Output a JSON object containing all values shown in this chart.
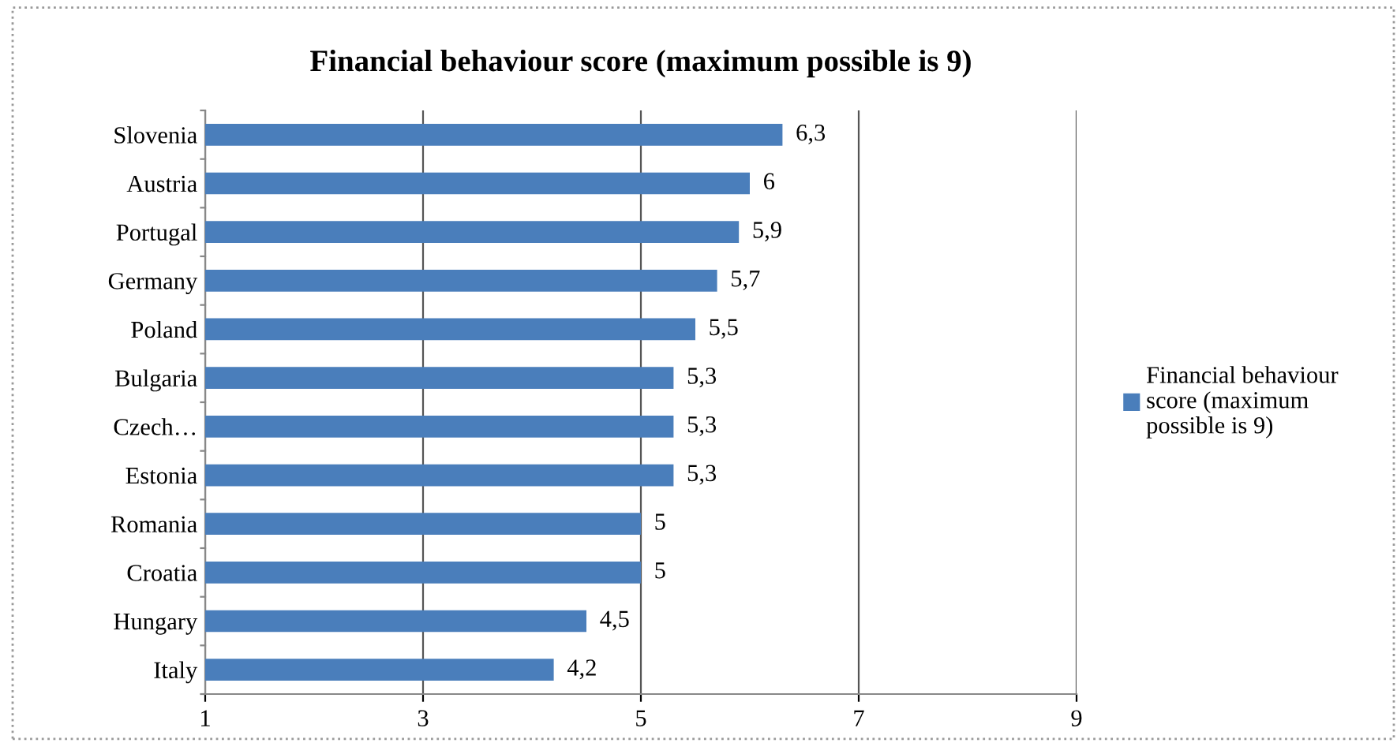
{
  "chart_data": {
    "type": "bar",
    "orientation": "horizontal",
    "title": "Financial behaviour score (maximum possible is 9)",
    "categories": [
      "Slovenia",
      "Austria",
      "Portugal",
      "Germany",
      "Poland",
      "Bulgaria",
      "Czech…",
      "Estonia",
      "Romania",
      "Croatia",
      "Hungary",
      "Italy"
    ],
    "series": [
      {
        "name": "Financial behaviour score (maximum possible is 9)",
        "color": "#4a7ebb",
        "values": [
          6.3,
          6,
          5.9,
          5.7,
          5.5,
          5.3,
          5.3,
          5.3,
          5,
          5,
          4.5,
          4.2
        ],
        "value_labels": [
          "6,3",
          "6",
          "5,9",
          "5,7",
          "5,5",
          "5,3",
          "5,3",
          "5,3",
          "5",
          "5",
          "4,5",
          "4,2"
        ]
      }
    ],
    "xlim": [
      1,
      9
    ],
    "xticks": [
      1,
      3,
      5,
      7,
      9
    ],
    "grid": "x",
    "legend": "right"
  }
}
